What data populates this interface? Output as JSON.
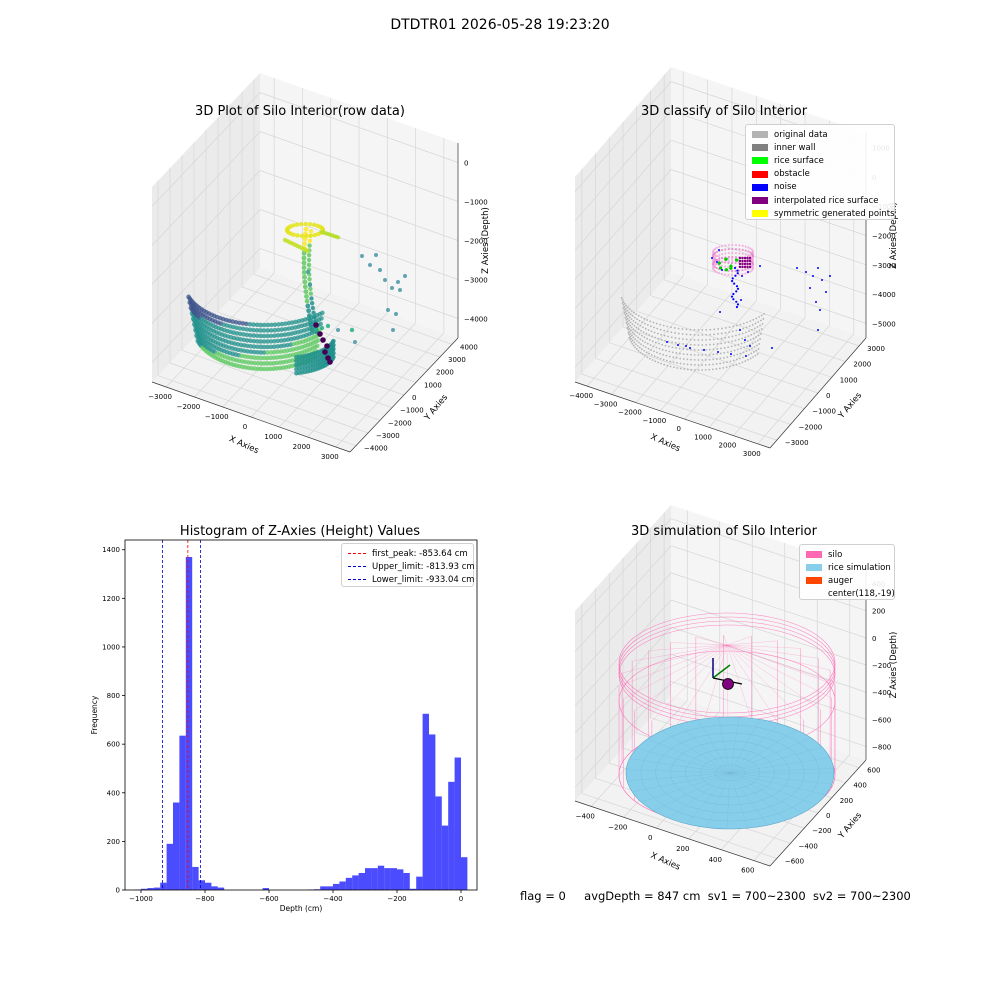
{
  "figure_title": "DTDTR01 2026-05-28 19:23:20",
  "footer": {
    "flag": "flag = 0",
    "avg_depth": "avgDepth = 847 cm",
    "sv1": "sv1 = 700~2300",
    "sv2": "sv2 = 700~2300"
  },
  "chart_data": [
    {
      "type": "scatter",
      "title": "3D Plot of Silo Interior(row data)",
      "xlabel": "X Axies",
      "ylabel": "Y Axies",
      "zlabel": "Z Axies (Depth)",
      "x_ticks": [
        "−3000",
        "−2000",
        "−1000",
        "0",
        "1000",
        "2000",
        "3000"
      ],
      "y_ticks": [
        "−4000",
        "−3000",
        "−2000",
        "−1000",
        "0",
        "1000",
        "2000",
        "3000",
        "4000"
      ],
      "z_ticks": [
        "−4000",
        "−3000",
        "−2000",
        "−1000",
        "0"
      ],
      "colormap": [
        "#440154",
        "#3b528b",
        "#21918c",
        "#5ec962",
        "#fde725"
      ]
    },
    {
      "type": "scatter",
      "title": "3D classify of Silo Interior",
      "xlabel": "X Axies",
      "ylabel": "Y Axies",
      "zlabel": "Z Axies (Depth)",
      "x_ticks": [
        "−4000",
        "−3000",
        "−2000",
        "−1000",
        "0",
        "1000",
        "2000",
        "3000"
      ],
      "y_ticks": [
        "−3000",
        "−2000",
        "−1000",
        "0",
        "1000",
        "2000",
        "3000"
      ],
      "z_ticks": [
        "−5000",
        "−4000",
        "−3000",
        "−2000",
        "−1000",
        "0",
        "1000"
      ],
      "legend": [
        {
          "label": "original data",
          "color": "#b3b3b3"
        },
        {
          "label": "inner wall",
          "color": "#808080"
        },
        {
          "label": "rice surface",
          "color": "#00ff00"
        },
        {
          "label": "obstacle",
          "color": "#ff0000"
        },
        {
          "label": "noise",
          "color": "#0000ff"
        },
        {
          "label": "interpolated rice surface",
          "color": "#800080"
        },
        {
          "label": "symmetric generated points",
          "color": "#ffff00"
        }
      ]
    },
    {
      "type": "bar",
      "title": "Histogram of Z-Axies (Height) Values",
      "xlabel": "Depth (cm)",
      "ylabel": "Frequency",
      "xlim": [
        -1050,
        50
      ],
      "ylim": [
        0,
        1440
      ],
      "x_ticks": [
        -1000,
        -800,
        -600,
        -400,
        -200,
        0
      ],
      "y_ticks": [
        0,
        200,
        400,
        600,
        800,
        1000,
        1200,
        1400
      ],
      "bar_color": "#0000ff",
      "bar_width": 20,
      "bars": [
        [
          -1010,
          2
        ],
        [
          -990,
          5
        ],
        [
          -970,
          8
        ],
        [
          -950,
          10
        ],
        [
          -930,
          30
        ],
        [
          -910,
          190
        ],
        [
          -890,
          360
        ],
        [
          -870,
          635
        ],
        [
          -850,
          1370
        ],
        [
          -830,
          95
        ],
        [
          -810,
          40
        ],
        [
          -790,
          30
        ],
        [
          -770,
          15
        ],
        [
          -750,
          10
        ],
        [
          -610,
          8
        ],
        [
          -470,
          2
        ],
        [
          -450,
          3
        ],
        [
          -430,
          15
        ],
        [
          -410,
          15
        ],
        [
          -390,
          25
        ],
        [
          -370,
          35
        ],
        [
          -350,
          50
        ],
        [
          -330,
          60
        ],
        [
          -310,
          70
        ],
        [
          -290,
          90
        ],
        [
          -270,
          90
        ],
        [
          -250,
          100
        ],
        [
          -230,
          90
        ],
        [
          -210,
          90
        ],
        [
          -190,
          85
        ],
        [
          -170,
          70
        ],
        [
          -150,
          5
        ],
        [
          -130,
          55
        ],
        [
          -110,
          725
        ],
        [
          -90,
          640
        ],
        [
          -70,
          385
        ],
        [
          -50,
          265
        ],
        [
          -30,
          445
        ],
        [
          -10,
          545
        ],
        [
          10,
          135
        ]
      ],
      "lines": [
        {
          "label": "first_peak: -853.64 cm",
          "value": -853.64,
          "color": "#ff0000"
        },
        {
          "label": "Upper_limit: -813.93 cm",
          "value": -813.93,
          "color": "#0000cc"
        },
        {
          "label": "Lower_limit: -933.04 cm",
          "value": -933.04,
          "color": "#0000cc"
        }
      ]
    },
    {
      "type": "scatter",
      "title": "3D simulation of Silo Interior",
      "xlabel": "X Axies",
      "ylabel": "Y Axies",
      "zlabel": "Z Axies (Depth)",
      "x_ticks": [
        "−400",
        "−200",
        "0",
        "200",
        "400",
        "600"
      ],
      "y_ticks": [
        "−600",
        "−400",
        "−200",
        "0",
        "200",
        "400",
        "600"
      ],
      "z_ticks": [
        "−800",
        "−600",
        "−400",
        "−200",
        "0",
        "200",
        "400"
      ],
      "legend": [
        {
          "label": "silo",
          "color": "#ff69b4"
        },
        {
          "label": "rice simulation",
          "color": "#87ceeb"
        },
        {
          "label": "auger",
          "color": "#ff4500"
        },
        {
          "label": "center(118,-19)",
          "color": ""
        }
      ]
    }
  ]
}
